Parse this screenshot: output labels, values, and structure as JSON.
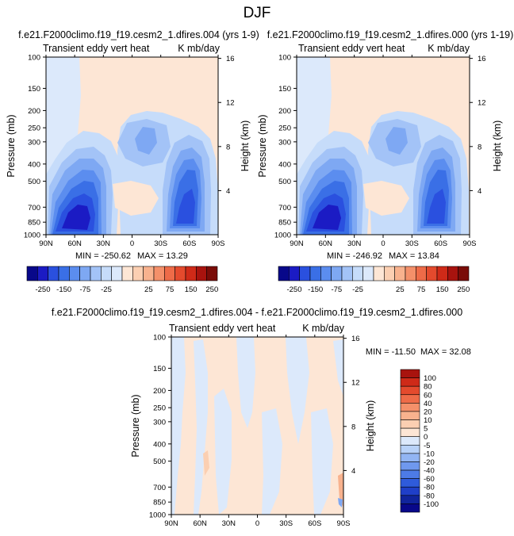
{
  "figure_title": "DJF",
  "chart_data": [
    {
      "type": "heatmap",
      "title": "f.e21.F2000climo.f19_f19.cesm2_1.dfires.004 (yrs 1-9)",
      "left_label": "Transient eddy vert heat",
      "right_label": "K mb/day",
      "xlabel": "",
      "ylabel": "Pressure (mb)",
      "y2label": "Height (km)",
      "x_ticks": [
        "90N",
        "60N",
        "30N",
        "0",
        "30S",
        "60S",
        "90S"
      ],
      "y_ticks": [
        "100",
        "150",
        "200",
        "250",
        "300",
        "400",
        "500",
        "700",
        "850",
        "1000"
      ],
      "y2_ticks": [
        "16",
        "12",
        "8",
        "4"
      ],
      "xlim": [
        90,
        -90
      ],
      "ylim": [
        1000,
        100
      ],
      "min_label": "MIN = -250.62",
      "max_label": "MAX =  13.29",
      "min": -250.62,
      "max": 13.29
    },
    {
      "type": "heatmap",
      "title": "f.e21.F2000climo.f19_f19.cesm2_1.dfires.000 (yrs 1-19)",
      "left_label": "Transient eddy vert heat",
      "right_label": "K mb/day",
      "xlabel": "",
      "ylabel": "Pressure (mb)",
      "y2label": "Height (km)",
      "x_ticks": [
        "90N",
        "60N",
        "30N",
        "0",
        "30S",
        "60S",
        "90S"
      ],
      "y_ticks": [
        "100",
        "150",
        "200",
        "250",
        "300",
        "400",
        "500",
        "700",
        "850",
        "1000"
      ],
      "y2_ticks": [
        "16",
        "12",
        "8",
        "4"
      ],
      "xlim": [
        90,
        -90
      ],
      "ylim": [
        1000,
        100
      ],
      "min_label": "MIN = -246.92",
      "max_label": "MAX =  13.84",
      "min": -246.92,
      "max": 13.84
    },
    {
      "type": "heatmap",
      "title": "f.e21.F2000climo.f19_f19.cesm2_1.dfires.004 - f.e21.F2000climo.f19_f19.cesm2_1.dfires.000",
      "left_label": "Transient eddy vert heat",
      "right_label": "K mb/day",
      "xlabel": "",
      "ylabel": "Pressure (mb)",
      "y2label": "Height (km)",
      "x_ticks": [
        "90N",
        "60N",
        "30N",
        "0",
        "30S",
        "60S",
        "90S"
      ],
      "y_ticks": [
        "100",
        "150",
        "200",
        "250",
        "300",
        "400",
        "500",
        "700",
        "850",
        "1000"
      ],
      "y2_ticks": [
        "16",
        "12",
        "8",
        "4"
      ],
      "xlim": [
        90,
        -90
      ],
      "ylim": [
        1000,
        100
      ],
      "min_label": "MIN = -11.50",
      "max_label": "MAX =  32.08",
      "min": -11.5,
      "max": 32.08
    }
  ],
  "colorbar_top": {
    "tick_labels": [
      "-250",
      "-150",
      "-75",
      "-25",
      "25",
      "75",
      "150",
      "250"
    ],
    "colors": [
      "#08088a",
      "#1b1bc4",
      "#2a50df",
      "#3a6fe6",
      "#5b8def",
      "#7ea8f3",
      "#a3c3f7",
      "#c6dcfa",
      "#dce9fb",
      "#fde6d5",
      "#fbcfb2",
      "#f8b28e",
      "#f4906a",
      "#ee6b48",
      "#e44a2d",
      "#cf2a18",
      "#a8130e",
      "#7a0c08"
    ]
  },
  "colorbar_diff": {
    "tick_labels": [
      "100",
      "80",
      "60",
      "40",
      "20",
      "10",
      "5",
      "0",
      "-5",
      "-10",
      "-20",
      "-40",
      "-60",
      "-80",
      "-80",
      "-100"
    ],
    "colors": [
      "#a8130e",
      "#cf2a18",
      "#e44a2d",
      "#ee6b48",
      "#f4906a",
      "#f8b28e",
      "#fbcfb2",
      "#fde6d5",
      "#dce9fb",
      "#b8d2f8",
      "#92b5f3",
      "#6f98ee",
      "#4d7be6",
      "#2f5bdb",
      "#1f3fc8",
      "#10249c",
      "#08088a"
    ]
  }
}
